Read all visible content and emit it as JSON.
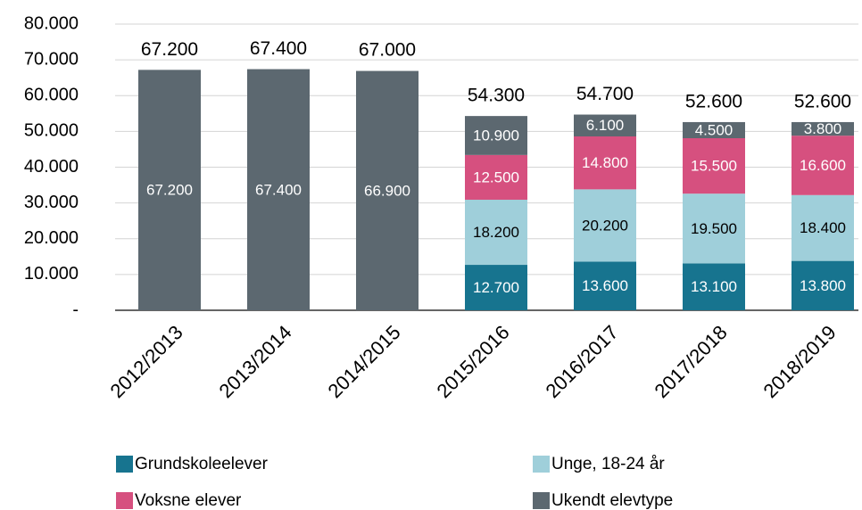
{
  "chart_data": {
    "type": "stacked_bar",
    "categories": [
      "2012/2013",
      "2013/2014",
      "2014/2015",
      "2015/2016",
      "2016/2017",
      "2017/2018",
      "2018/2019"
    ],
    "series": [
      {
        "name": "Grundskoleelever",
        "color": "#17748f",
        "label_color": "#ffffff",
        "values": [
          null,
          null,
          null,
          12700,
          13600,
          13100,
          13800
        ],
        "value_labels": [
          null,
          null,
          null,
          "12.700",
          "13.600",
          "13.100",
          "13.800"
        ]
      },
      {
        "name": "Unge, 18-24 år",
        "color": "#9fcfda",
        "label_color": "#000000",
        "values": [
          null,
          null,
          null,
          18200,
          20200,
          19500,
          18400
        ],
        "value_labels": [
          null,
          null,
          null,
          "18.200",
          "20.200",
          "19.500",
          "18.400"
        ]
      },
      {
        "name": "Voksne elever",
        "color": "#d6507f",
        "label_color": "#ffffff",
        "values": [
          null,
          null,
          null,
          12500,
          14800,
          15500,
          16600
        ],
        "value_labels": [
          null,
          null,
          null,
          "12.500",
          "14.800",
          "15.500",
          "16.600"
        ]
      },
      {
        "name": "Ukendt elevtype",
        "color": "#5c6870",
        "label_color": "#ffffff",
        "values": [
          67200,
          67400,
          66900,
          10900,
          6100,
          4500,
          3800
        ],
        "value_labels": [
          "67.200",
          "67.400",
          "66.900",
          "10.900",
          "6.100",
          "4.500",
          "3.800"
        ]
      }
    ],
    "totals": {
      "values": [
        67200,
        67400,
        67000,
        54300,
        54700,
        52600,
        52600
      ],
      "value_labels": [
        "67.200",
        "67.400",
        "67.000",
        "54.300",
        "54.700",
        "52.600",
        "52.600"
      ]
    },
    "ylim": [
      0,
      80000
    ],
    "yticks": [
      {
        "value": 0,
        "label": "-"
      },
      {
        "value": 10000,
        "label": "10.000"
      },
      {
        "value": 20000,
        "label": "20.000"
      },
      {
        "value": 30000,
        "label": "30.000"
      },
      {
        "value": 40000,
        "label": "40.000"
      },
      {
        "value": 50000,
        "label": "50.000"
      },
      {
        "value": 60000,
        "label": "60.000"
      },
      {
        "value": 70000,
        "label": "70.000"
      },
      {
        "value": 80000,
        "label": "80.000"
      }
    ],
    "grid": true
  }
}
